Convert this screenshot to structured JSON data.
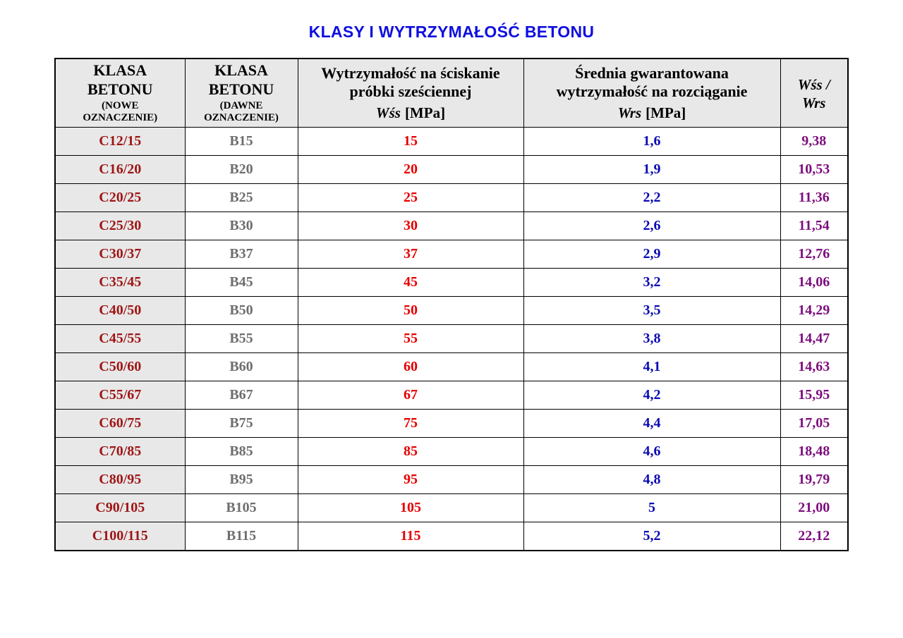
{
  "page": {
    "title": "KLASY I WYTRZYMAŁOŚĆ BETONU"
  },
  "colors": {
    "title_blue": "#0f0fe0",
    "class_new_red": "#9e1515",
    "class_old_gray": "#6e6e6e",
    "wss_red": "#e60000",
    "wrs_blue": "#0a0ab4",
    "ratio_purple": "#7d0d7d",
    "header_bg": "#e8e8e8",
    "first_col_bg": "#e8e8e8",
    "border_black": "#000000"
  },
  "table": {
    "headers": [
      {
        "main": "KLASA\nBETONU",
        "sub": "(NOWE\nOZNACZENIE)"
      },
      {
        "main": "KLASA\nBETONU",
        "sub": "(DAWNE\nOZNACZENIE)"
      },
      {
        "main": "Wytrzymałość na ściskanie\npróbki sześciennej",
        "formula": "Wśs",
        "unit": "[MPa]"
      },
      {
        "main": "Średnia gwarantowana\nwytrzymałość na rozciąganie",
        "formula": "Wrs",
        "unit": "[MPa]"
      },
      {
        "formula": "Wśs /\nWrs"
      }
    ],
    "rows": [
      {
        "class_new": "C12/15",
        "class_old": "B15",
        "wss": "15",
        "wrs": "1,6",
        "ratio": "9,38"
      },
      {
        "class_new": "C16/20",
        "class_old": "B20",
        "wss": "20",
        "wrs": "1,9",
        "ratio": "10,53"
      },
      {
        "class_new": "C20/25",
        "class_old": "B25",
        "wss": "25",
        "wrs": "2,2",
        "ratio": "11,36"
      },
      {
        "class_new": "C25/30",
        "class_old": "B30",
        "wss": "30",
        "wrs": "2,6",
        "ratio": "11,54"
      },
      {
        "class_new": "C30/37",
        "class_old": "B37",
        "wss": "37",
        "wrs": "2,9",
        "ratio": "12,76"
      },
      {
        "class_new": "C35/45",
        "class_old": "B45",
        "wss": "45",
        "wrs": "3,2",
        "ratio": "14,06"
      },
      {
        "class_new": "C40/50",
        "class_old": "B50",
        "wss": "50",
        "wrs": "3,5",
        "ratio": "14,29"
      },
      {
        "class_new": "C45/55",
        "class_old": "B55",
        "wss": "55",
        "wrs": "3,8",
        "ratio": "14,47"
      },
      {
        "class_new": "C50/60",
        "class_old": "B60",
        "wss": "60",
        "wrs": "4,1",
        "ratio": "14,63"
      },
      {
        "class_new": "C55/67",
        "class_old": "B67",
        "wss": "67",
        "wrs": "4,2",
        "ratio": "15,95"
      },
      {
        "class_new": "C60/75",
        "class_old": "B75",
        "wss": "75",
        "wrs": "4,4",
        "ratio": "17,05"
      },
      {
        "class_new": "C70/85",
        "class_old": "B85",
        "wss": "85",
        "wrs": "4,6",
        "ratio": "18,48"
      },
      {
        "class_new": "C80/95",
        "class_old": "B95",
        "wss": "95",
        "wrs": "4,8",
        "ratio": "19,79"
      },
      {
        "class_new": "C90/105",
        "class_old": "B105",
        "wss": "105",
        "wrs": "5",
        "ratio": "21,00"
      },
      {
        "class_new": "C100/115",
        "class_old": "B115",
        "wss": "115",
        "wrs": "5,2",
        "ratio": "22,12"
      }
    ]
  }
}
